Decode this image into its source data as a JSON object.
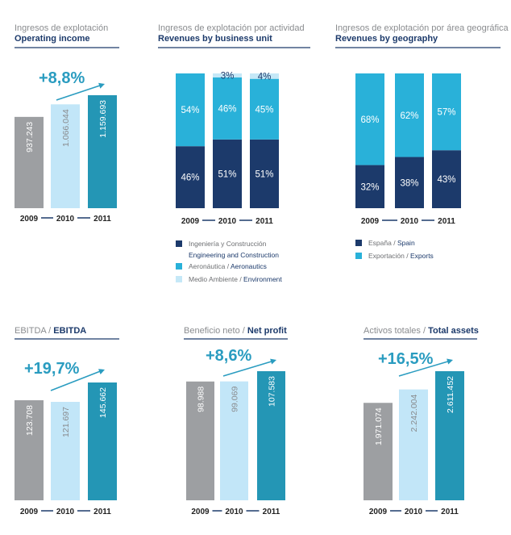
{
  "colors": {
    "gray": "#9d9fa2",
    "light_blue": "#c2e6f8",
    "teal": "#2496b5",
    "navy": "#1c3a6b",
    "cyan": "#29b1d9",
    "pale": "#c5e8f7",
    "title_es": "#8a8c8f",
    "title_en": "#1c3a6b",
    "growth": "#2a9cc0"
  },
  "chart_data": [
    {
      "id": "operating-income",
      "type": "bar",
      "title_es": "Ingresos de explotación",
      "title_en": "Operating income",
      "categories": [
        "2009",
        "2010",
        "2011"
      ],
      "values": [
        937243,
        1066044,
        1159693
      ],
      "value_labels": [
        "937.243",
        "1.066.044",
        "1.159.693"
      ],
      "growth_label": "+8,8%",
      "ylim": [
        0,
        1300000
      ]
    },
    {
      "id": "revenues-business-unit",
      "type": "bar",
      "stacked": true,
      "title_es": "Ingresos de explotación por actividad",
      "title_en": "Revenues by business unit",
      "categories": [
        "2009",
        "2010",
        "2011"
      ],
      "series": [
        {
          "name_es": "Ingeniería y Construcción",
          "name_en": "Engineering and Construction",
          "values": [
            46,
            51,
            51
          ],
          "labels": [
            "46%",
            "51%",
            "51%"
          ]
        },
        {
          "name_es": "Aeronáutica",
          "name_en": "Aeronautics",
          "values": [
            54,
            46,
            45
          ],
          "labels": [
            "54%",
            "46%",
            "45%"
          ]
        },
        {
          "name_es": "Medio Ambiente",
          "name_en": "Environment",
          "values": [
            0,
            3,
            4
          ],
          "labels": [
            "",
            "3%",
            "4%"
          ]
        }
      ],
      "ylim": [
        0,
        100
      ]
    },
    {
      "id": "revenues-geography",
      "type": "bar",
      "stacked": true,
      "title_es": "Ingresos de explotación por área geográfica",
      "title_en": "Revenues by geography",
      "categories": [
        "2009",
        "2010",
        "2011"
      ],
      "series": [
        {
          "name_es": "España",
          "name_en": "Spain",
          "values": [
            32,
            38,
            43
          ],
          "labels": [
            "32%",
            "38%",
            "43%"
          ]
        },
        {
          "name_es": "Exportación",
          "name_en": "Exports",
          "values": [
            68,
            62,
            57
          ],
          "labels": [
            "68%",
            "62%",
            "57%"
          ]
        }
      ],
      "ylim": [
        0,
        100
      ]
    },
    {
      "id": "ebitda",
      "type": "bar",
      "title_es": "EBITDA",
      "title_en": "EBITDA",
      "categories": [
        "2009",
        "2010",
        "2011"
      ],
      "values": [
        123708,
        121697,
        145662
      ],
      "value_labels": [
        "123.708",
        "121.697",
        "145.662"
      ],
      "growth_label": "+19,7%",
      "ylim": [
        0,
        168000
      ]
    },
    {
      "id": "net-profit",
      "type": "bar",
      "title_es": "Beneficio neto",
      "title_en": "Net profit",
      "categories": [
        "2009",
        "2010",
        "2011"
      ],
      "values": [
        98988,
        99069,
        107583
      ],
      "value_labels": [
        "98.988",
        "99.069",
        "107.583"
      ],
      "growth_label": "+8,6%",
      "ylim": [
        0,
        122000
      ]
    },
    {
      "id": "total-assets",
      "type": "bar",
      "title_es": "Activos totales",
      "title_en": "Total assets",
      "categories": [
        "2009",
        "2010",
        "2011"
      ],
      "values": [
        1971074,
        2242004,
        2611452
      ],
      "value_labels": [
        "1.971.074",
        "2.242.004",
        "2.611.452"
      ],
      "growth_label": "+16,5%",
      "ylim": [
        0,
        2900000
      ]
    }
  ]
}
